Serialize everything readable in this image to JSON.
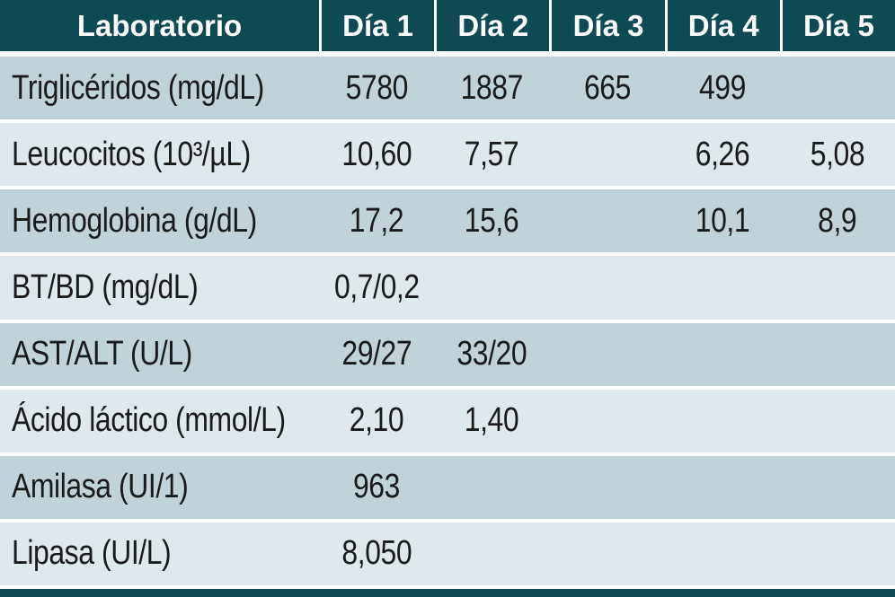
{
  "colors": {
    "header_bg": "#0d4a54",
    "header_text": "#ffffff",
    "row_dark": "#c1d3d8",
    "row_light": "#dfe9ed",
    "separator": "#ffffff",
    "text": "#1a1a1a"
  },
  "chart_data": {
    "type": "table",
    "title": "Laboratorio",
    "columns": [
      "Laboratorio",
      "Día 1",
      "Día 2",
      "Día 3",
      "Día 4",
      "Día 5"
    ],
    "rows": [
      {
        "label": "Triglicéridos (mg/dL)",
        "values": [
          "5780",
          "1887",
          "665",
          "499",
          ""
        ]
      },
      {
        "label": "Leucocitos (10³/µL)",
        "values": [
          "10,60",
          "7,57",
          "",
          "6,26",
          "5,08"
        ]
      },
      {
        "label": "Hemoglobina (g/dL)",
        "values": [
          "17,2",
          "15,6",
          "",
          "10,1",
          "8,9"
        ]
      },
      {
        "label": "BT/BD (mg/dL)",
        "values": [
          "0,7/0,2",
          "",
          "",
          "",
          ""
        ]
      },
      {
        "label": "AST/ALT (U/L)",
        "values": [
          "29/27",
          "33/20",
          "",
          "",
          ""
        ]
      },
      {
        "label": "Ácido láctico (mmol/L)",
        "values": [
          "2,10",
          "1,40",
          "",
          "",
          ""
        ]
      },
      {
        "label": "Amilasa (UI/1)",
        "values": [
          "963",
          "",
          "",
          "",
          ""
        ]
      },
      {
        "label": "Lipasa (UI/L)",
        "values": [
          "8,050",
          "",
          "",
          "",
          ""
        ]
      }
    ]
  }
}
